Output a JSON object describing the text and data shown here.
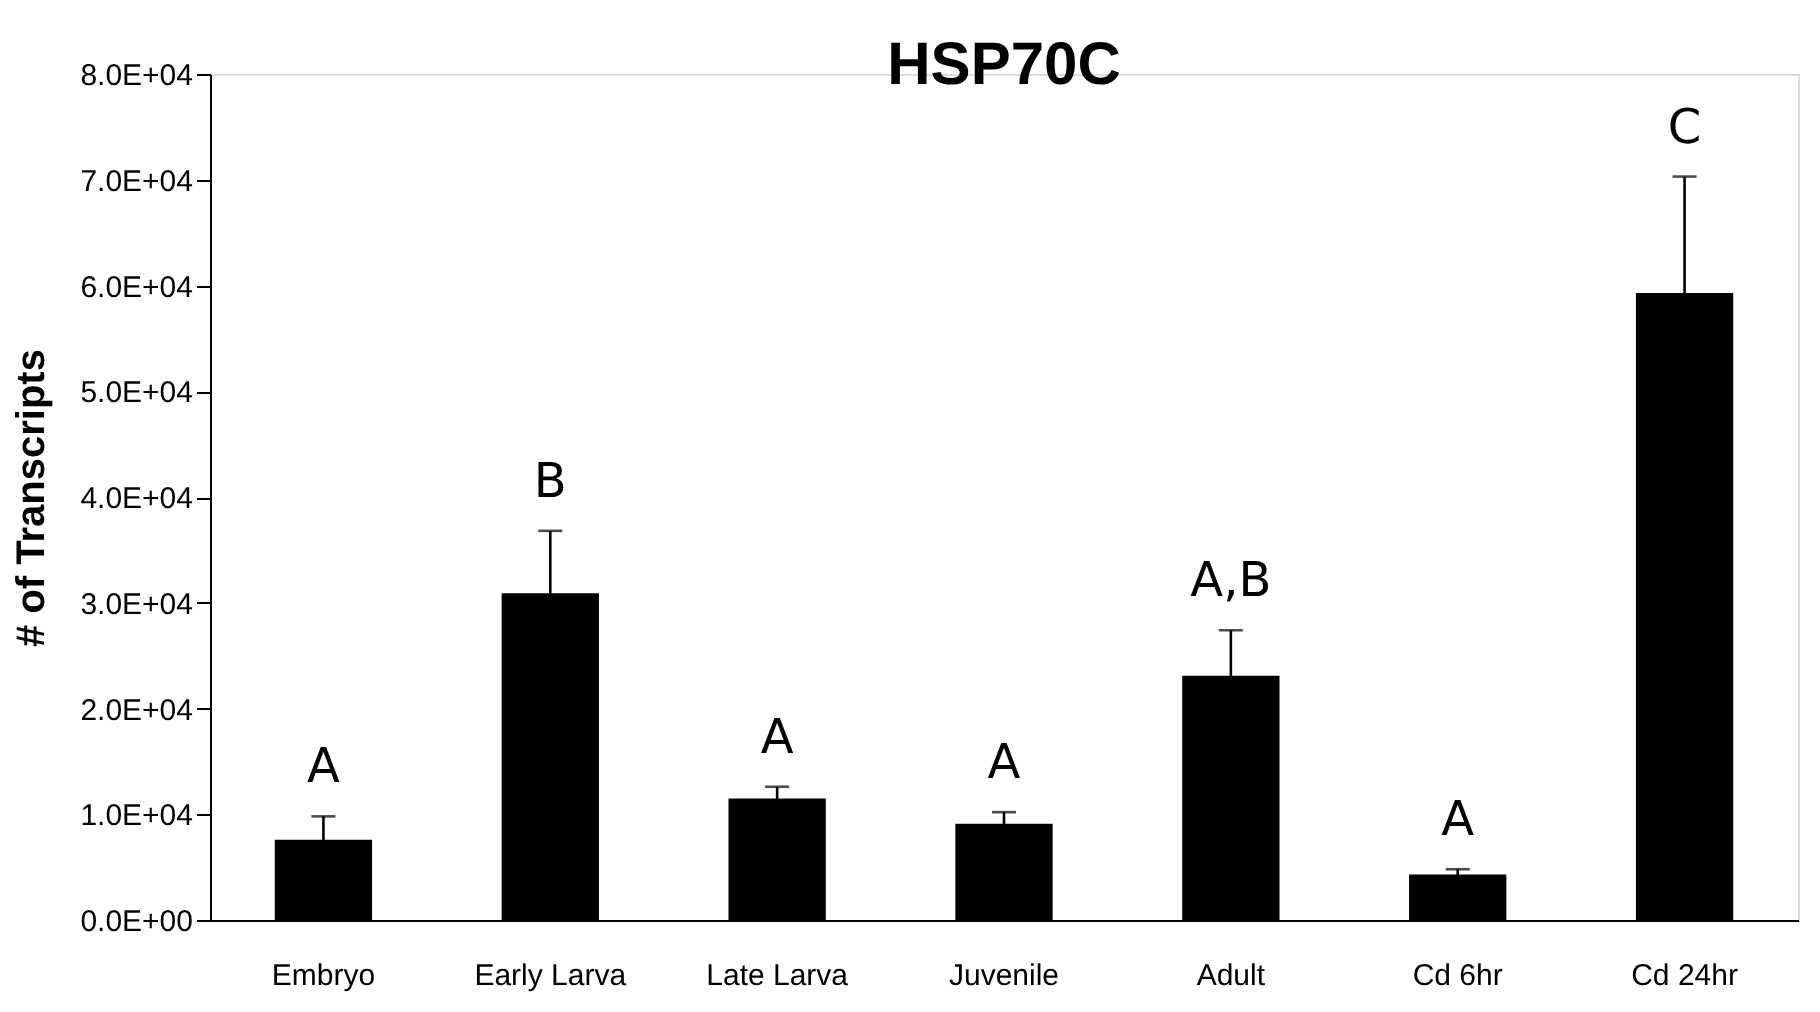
{
  "chart_data": {
    "type": "bar",
    "title": "HSP70C",
    "ylabel": "# of Transcripts",
    "categories": [
      "Embryo",
      "Early Larva",
      "Late Larva",
      "Juvenile",
      "Adult",
      "Cd 6hr",
      "Cd 24hr"
    ],
    "values": [
      7500,
      30800,
      11400,
      9000,
      23000,
      4200,
      59200
    ],
    "errors": [
      [
        7500,
        9800
      ],
      [
        30800,
        36800
      ],
      [
        11400,
        12600
      ],
      [
        9000,
        10200
      ],
      [
        23000,
        27400
      ],
      [
        4200,
        4800
      ],
      [
        59200,
        70300
      ]
    ],
    "color": "#000000",
    "ylim": [
      0,
      80000
    ],
    "yticks": [
      {
        "value": 0,
        "label": "0.0E+00"
      },
      {
        "value": 10000,
        "label": "1.0E+04"
      },
      {
        "value": 20000,
        "label": "2.0E+04"
      },
      {
        "value": 30000,
        "label": "3.0E+04"
      },
      {
        "value": 40000,
        "label": "4.0E+04"
      },
      {
        "value": 50000,
        "label": "5.0E+04"
      },
      {
        "value": 60000,
        "label": "6.0E+04"
      },
      {
        "value": 70000,
        "label": "7.0E+04"
      },
      {
        "value": 80000,
        "label": "8.0E+04"
      }
    ],
    "annotations": [
      "A",
      "B",
      "A",
      "A",
      "A,B",
      "A",
      "C"
    ],
    "grid": false
  }
}
